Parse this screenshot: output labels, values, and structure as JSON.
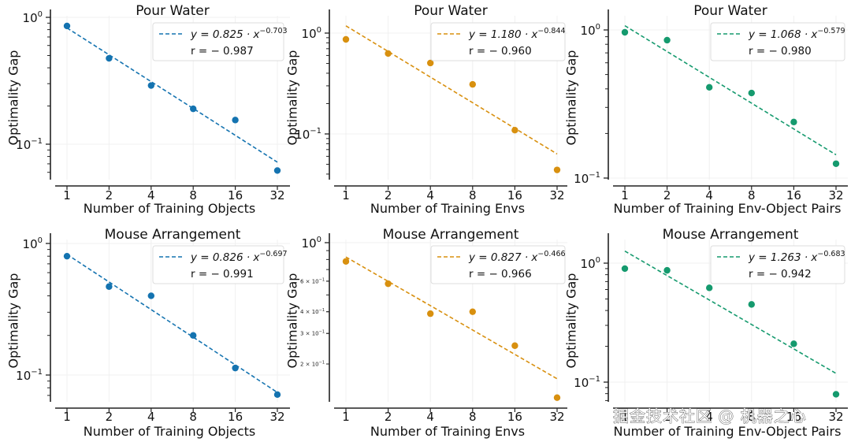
{
  "figure": {
    "watermark": "掘金技术社区 @ 机器之心"
  },
  "chart_data": [
    {
      "type": "scatter",
      "title": "Pour Water",
      "xlabel": "Number of Training Objects",
      "ylabel": "Optimality Gap",
      "xscale": "log2",
      "yscale": "log10",
      "x": [
        1,
        2,
        4,
        8,
        16,
        32
      ],
      "x_tick_labels": [
        "1",
        "2",
        "4",
        "8",
        "16",
        "32"
      ],
      "y": [
        0.855,
        0.475,
        0.29,
        0.19,
        0.155,
        0.062
      ],
      "ylim": [
        0.052,
        1.0
      ],
      "y_major_ticks": [
        {
          "value": 1.0,
          "base": "10",
          "exp": "0"
        },
        {
          "value": 0.1,
          "base": "10",
          "exp": "−1"
        }
      ],
      "y_minor_tick_labels": [],
      "fit": {
        "a": 0.825,
        "b": -0.703,
        "label_prefix": "y = 0.825 · x",
        "label_exp": "−0.703",
        "r_label": "r =  − 0.987"
      },
      "color": "#1473b0",
      "legend_position": "top-right",
      "grid": true
    },
    {
      "type": "scatter",
      "title": "Pour Water",
      "xlabel": "Number of Training Envs",
      "ylabel": "Optimality Gap",
      "xscale": "log2",
      "yscale": "log10",
      "x": [
        1,
        2,
        4,
        8,
        16,
        32
      ],
      "x_tick_labels": [
        "1",
        "2",
        "4",
        "8",
        "16",
        "32"
      ],
      "y": [
        0.866,
        0.627,
        0.505,
        0.31,
        0.109,
        0.044
      ],
      "ylim": [
        0.036,
        1.45
      ],
      "y_major_ticks": [
        {
          "value": 1.0,
          "base": "10",
          "exp": "0"
        },
        {
          "value": 0.1,
          "base": "10",
          "exp": "−1"
        }
      ],
      "y_minor_tick_labels": [],
      "fit": {
        "a": 1.18,
        "b": -0.844,
        "label_prefix": "y = 1.180 · x",
        "label_exp": "−0.844",
        "r_label": "r =  − 0.960"
      },
      "color": "#d8900f",
      "legend_position": "top-right",
      "grid": true
    },
    {
      "type": "scatter",
      "title": "Pour Water",
      "xlabel": "Number of Training Env-Object Pairs",
      "ylabel": "Optimality Gap",
      "xscale": "log2",
      "yscale": "log10",
      "x": [
        1,
        2,
        4,
        8,
        16,
        32
      ],
      "x_tick_labels": [
        "1",
        "2",
        "4",
        "8",
        "16",
        "32"
      ],
      "y": [
        0.964,
        0.853,
        0.41,
        0.375,
        0.239,
        0.125
      ],
      "ylim": [
        0.1,
        1.2
      ],
      "y_major_ticks": [
        {
          "value": 1.0,
          "base": "10",
          "exp": "0"
        },
        {
          "value": 0.1,
          "base": "10",
          "exp": "−1"
        }
      ],
      "y_minor_tick_labels": [],
      "fit": {
        "a": 1.068,
        "b": -0.579,
        "label_prefix": "y = 1.068 · x",
        "label_exp": "−0.579",
        "r_label": "r =  − 0.980"
      },
      "color": "#159a6e",
      "legend_position": "top-right",
      "grid": true
    },
    {
      "type": "scatter",
      "title": "Mouse Arrangement",
      "xlabel": "Number of Training Objects",
      "ylabel": "Optimality Gap",
      "xscale": "log2",
      "yscale": "log10",
      "x": [
        1,
        2,
        4,
        8,
        16,
        32
      ],
      "x_tick_labels": [
        "1",
        "2",
        "4",
        "8",
        "16",
        "32"
      ],
      "y": [
        0.8,
        0.47,
        0.4,
        0.2,
        0.113,
        0.071
      ],
      "ylim": [
        0.063,
        1.0
      ],
      "y_major_ticks": [
        {
          "value": 1.0,
          "base": "10",
          "exp": "0"
        },
        {
          "value": 0.1,
          "base": "10",
          "exp": "−1"
        }
      ],
      "y_minor_tick_labels": [],
      "fit": {
        "a": 0.826,
        "b": -0.697,
        "label_prefix": "y = 0.826 · x",
        "label_exp": "−0.697",
        "r_label": "r =  − 0.991"
      },
      "color": "#1473b0",
      "legend_position": "top-right",
      "grid": true
    },
    {
      "type": "scatter",
      "title": "Mouse Arrangement",
      "xlabel": "Number of Training Envs",
      "ylabel": "Optimality Gap",
      "xscale": "log2",
      "yscale": "log10",
      "x": [
        1,
        2,
        4,
        8,
        16,
        32
      ],
      "x_tick_labels": [
        "1",
        "2",
        "4",
        "8",
        "16",
        "32"
      ],
      "y": [
        0.78,
        0.58,
        0.39,
        0.4,
        0.255,
        0.128
      ],
      "ylim": [
        0.12,
        1.0
      ],
      "y_major_ticks": [
        {
          "value": 1.0,
          "base": "10",
          "exp": "0"
        }
      ],
      "y_minor_tick_labels": [
        {
          "value": 0.6,
          "label": "6 × 10",
          "exp": "−1"
        },
        {
          "value": 0.4,
          "label": "4 × 10",
          "exp": "−1"
        },
        {
          "value": 0.3,
          "label": "3 × 10",
          "exp": "−1"
        },
        {
          "value": 0.2,
          "label": "2 × 10",
          "exp": "−1"
        }
      ],
      "fit": {
        "a": 0.827,
        "b": -0.466,
        "label_prefix": "y = 0.827 · x",
        "label_exp": "−0.466",
        "r_label": "r =  − 0.966"
      },
      "color": "#d8900f",
      "legend_position": "top-right",
      "grid": true
    },
    {
      "type": "scatter",
      "title": "Mouse Arrangement",
      "xlabel": "Number of Training Env-Object Pairs",
      "ylabel": "Optimality Gap",
      "xscale": "log2",
      "yscale": "log10",
      "x": [
        1,
        2,
        4,
        8,
        16,
        32
      ],
      "x_tick_labels": [
        "1",
        "2",
        "4",
        "8",
        "16",
        "32"
      ],
      "y": [
        0.9,
        0.87,
        0.62,
        0.45,
        0.21,
        0.079
      ],
      "ylim": [
        0.069,
        1.5
      ],
      "y_major_ticks": [
        {
          "value": 1.0,
          "base": "10",
          "exp": "0"
        },
        {
          "value": 0.1,
          "base": "10",
          "exp": "−1"
        }
      ],
      "y_minor_tick_labels": [],
      "fit": {
        "a": 1.263,
        "b": -0.683,
        "label_prefix": "y = 1.263 · x",
        "label_exp": "−0.683",
        "r_label": "r =  − 0.942"
      },
      "color": "#159a6e",
      "legend_position": "top-right",
      "grid": true
    }
  ]
}
